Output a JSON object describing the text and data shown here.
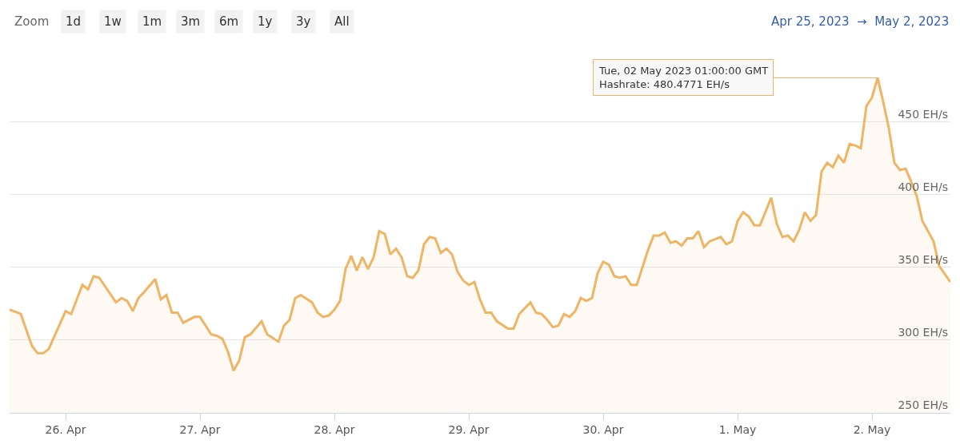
{
  "chart_data": {
    "type": "area",
    "x": [
      "2023-04-25T14:00",
      "2023-04-25T16:00",
      "2023-04-25T18:00",
      "2023-04-25T19:00",
      "2023-04-25T20:00",
      "2023-04-25T21:00",
      "2023-04-26T00:00",
      "2023-04-26T01:00",
      "2023-04-26T03:00",
      "2023-04-26T04:00",
      "2023-04-26T05:00",
      "2023-04-26T06:00",
      "2023-04-26T09:00",
      "2023-04-26T10:00",
      "2023-04-26T11:00",
      "2023-04-26T12:00",
      "2023-04-26T13:00",
      "2023-04-26T14:00",
      "2023-04-26T16:00",
      "2023-04-26T17:00",
      "2023-04-26T18:00",
      "2023-04-26T19:00",
      "2023-04-26T20:00",
      "2023-04-26T21:00",
      "2023-04-26T23:00",
      "2023-04-27T00:00",
      "2023-04-27T02:00",
      "2023-04-27T03:00",
      "2023-04-27T04:00",
      "2023-04-27T05:00",
      "2023-04-27T06:00",
      "2023-04-27T07:00",
      "2023-04-27T08:00",
      "2023-04-27T09:00",
      "2023-04-27T11:00",
      "2023-04-27T12:00",
      "2023-04-27T14:00",
      "2023-04-27T15:00",
      "2023-04-27T16:00",
      "2023-04-27T17:00",
      "2023-04-27T18:00",
      "2023-04-27T20:00",
      "2023-04-27T21:00",
      "2023-04-27T22:00",
      "2023-04-27T23:00",
      "2023-04-28T00:00",
      "2023-04-28T01:00",
      "2023-04-28T02:00",
      "2023-04-28T03:00",
      "2023-04-28T04:00",
      "2023-04-28T05:00",
      "2023-04-28T06:00",
      "2023-04-28T07:00",
      "2023-04-28T08:00",
      "2023-04-28T09:00",
      "2023-04-28T10:00",
      "2023-04-28T11:00",
      "2023-04-28T12:00",
      "2023-04-28T13:00",
      "2023-04-28T14:00",
      "2023-04-28T15:00",
      "2023-04-28T16:00",
      "2023-04-28T17:00",
      "2023-04-28T18:00",
      "2023-04-28T19:00",
      "2023-04-28T20:00",
      "2023-04-28T21:00",
      "2023-04-28T22:00",
      "2023-04-28T23:00",
      "2023-04-29T00:00",
      "2023-04-29T01:00",
      "2023-04-29T02:00",
      "2023-04-29T03:00",
      "2023-04-29T04:00",
      "2023-04-29T05:00",
      "2023-04-29T07:00",
      "2023-04-29T08:00",
      "2023-04-29T09:00",
      "2023-04-29T11:00",
      "2023-04-29T12:00",
      "2023-04-29T13:00",
      "2023-04-29T14:00",
      "2023-04-29T15:00",
      "2023-04-29T16:00",
      "2023-04-29T17:00",
      "2023-04-29T18:00",
      "2023-04-29T19:00",
      "2023-04-29T20:00",
      "2023-04-29T21:00",
      "2023-04-29T22:00",
      "2023-04-29T23:00",
      "2023-04-30T00:00",
      "2023-04-30T01:00",
      "2023-04-30T02:00",
      "2023-04-30T03:00",
      "2023-04-30T04:00",
      "2023-04-30T05:00",
      "2023-04-30T06:00",
      "2023-04-30T08:00",
      "2023-04-30T09:00",
      "2023-04-30T10:00",
      "2023-04-30T11:00",
      "2023-04-30T12:00",
      "2023-04-30T13:00",
      "2023-04-30T14:00",
      "2023-04-30T15:00",
      "2023-04-30T16:00",
      "2023-04-30T17:00",
      "2023-04-30T18:00",
      "2023-04-30T19:00",
      "2023-04-30T21:00",
      "2023-04-30T22:00",
      "2023-04-30T23:00",
      "2023-05-01T00:00",
      "2023-05-01T01:00",
      "2023-05-01T02:00",
      "2023-05-01T03:00",
      "2023-05-01T04:00",
      "2023-05-01T06:00",
      "2023-05-01T07:00",
      "2023-05-01T08:00",
      "2023-05-01T09:00",
      "2023-05-01T10:00",
      "2023-05-01T11:00",
      "2023-05-01T12:00",
      "2023-05-01T13:00",
      "2023-05-01T14:00",
      "2023-05-01T15:00",
      "2023-05-01T16:00",
      "2023-05-01T17:00",
      "2023-05-01T18:00",
      "2023-05-01T19:00",
      "2023-05-01T20:00",
      "2023-05-01T21:00",
      "2023-05-01T22:00",
      "2023-05-01T23:00",
      "2023-05-02T00:00",
      "2023-05-02T01:00",
      "2023-05-02T02:00",
      "2023-05-02T03:00",
      "2023-05-02T04:00",
      "2023-05-02T05:00",
      "2023-05-02T06:00",
      "2023-05-02T07:00",
      "2023-05-02T08:00",
      "2023-05-02T09:00",
      "2023-05-02T11:00",
      "2023-05-02T12:00",
      "2023-05-02T14:00"
    ],
    "series": [
      {
        "color": "#efb464",
        "values": [
          321,
          318,
          296,
          291,
          291,
          294,
          320,
          318,
          338,
          335,
          344,
          343,
          326,
          329,
          327,
          320,
          329,
          333,
          342,
          328,
          331,
          319,
          319,
          312,
          316,
          316,
          304,
          303,
          301,
          292,
          279,
          286,
          302,
          304,
          313,
          304,
          299,
          310,
          314,
          329,
          331,
          326,
          319,
          316,
          317,
          321,
          327,
          349,
          358,
          348,
          357,
          349,
          357,
          375,
          373,
          359,
          363,
          357,
          344,
          343,
          348,
          366,
          371,
          370,
          360,
          363,
          359,
          347,
          341,
          338,
          340,
          328,
          319,
          319,
          313,
          308,
          308,
          318,
          326,
          319,
          318,
          314,
          309,
          310,
          318,
          316,
          320,
          329,
          327,
          329,
          346,
          354,
          352,
          344,
          343,
          344,
          338,
          338,
          362,
          372,
          372,
          374,
          367,
          368,
          365,
          370,
          370,
          375,
          364,
          368,
          371,
          366,
          368,
          382,
          388,
          385,
          379,
          379,
          398,
          380,
          371,
          372,
          368,
          376,
          388,
          382,
          386,
          416,
          422,
          419,
          427,
          422,
          435,
          434,
          432,
          461,
          467,
          480.4771,
          464,
          446,
          422,
          417,
          418,
          409,
          399,
          382,
          368,
          351,
          340
        ]
      }
    ],
    "xlim": [
      "2023-04-25T14:00",
      "2023-05-02T14:00"
    ],
    "xticks": [
      {
        "value": "2023-04-26",
        "label": "26. Apr"
      },
      {
        "value": "2023-04-27",
        "label": "27. Apr"
      },
      {
        "value": "2023-04-28",
        "label": "28. Apr"
      },
      {
        "value": "2023-04-29",
        "label": "29. Apr"
      },
      {
        "value": "2023-04-30",
        "label": "30. Apr"
      },
      {
        "value": "2023-05-01",
        "label": "1. May"
      },
      {
        "value": "2023-05-02",
        "label": "2. May"
      }
    ],
    "ylim": [
      250,
      534
    ],
    "yticks": [
      {
        "value": 250,
        "label": "250 EH/s"
      },
      {
        "value": 300,
        "label": "300 EH/s"
      },
      {
        "value": 350,
        "label": "350 EH/s"
      },
      {
        "value": 400,
        "label": "400 EH/s"
      },
      {
        "value": 450,
        "label": "450 EH/s"
      }
    ],
    "grid": "y",
    "annotations": [
      "Zoom",
      "1d",
      "1w",
      "1m",
      "3m",
      "6m",
      "1y",
      "3y",
      "All",
      "Apr 25, 2023  →  May 2, 2023",
      {
        "text": "Tue, 02 May 2023 01:00:00 GMT\nHashrate: 480.4771 EH/s",
        "x": "2023-05-02T01:00",
        "y": 480.4771
      }
    ]
  }
}
